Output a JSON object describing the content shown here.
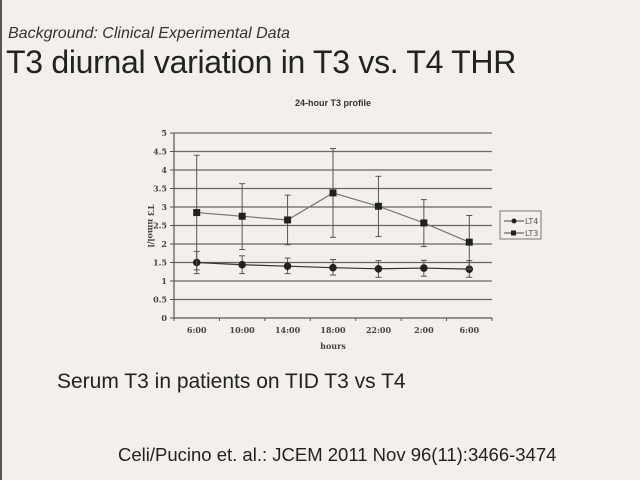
{
  "slide": {
    "subtitle": "Background: Clinical Experimental Data",
    "title": "T3 diurnal variation in T3 vs. T4 THR",
    "caption": "Serum T3 in patients on TID T3 vs T4",
    "citation": "Celi/Pucino et. al.: JCEM 2011 Nov 96(11):3466-3474"
  },
  "chart_data": {
    "type": "line",
    "title": "24-hour T3 profile",
    "xlabel": "hours",
    "ylabel": "T3 nmol/l",
    "ylim": [
      0,
      5
    ],
    "yticks": [
      "0",
      "0.5",
      "1",
      "1.5",
      "2",
      "2.5",
      "3",
      "3.5",
      "4",
      "4.5",
      "5"
    ],
    "categories": [
      "6:00",
      "10:00",
      "14:00",
      "18:00",
      "22:00",
      "2:00",
      "6:00"
    ],
    "grid": true,
    "legend_position": "right",
    "series": [
      {
        "name": "LT4",
        "marker": "diamond",
        "values": [
          1.5,
          1.44,
          1.4,
          1.36,
          1.33,
          1.35,
          1.32
        ],
        "err_high": [
          1.8,
          1.68,
          1.62,
          1.58,
          1.55,
          1.56,
          1.55
        ],
        "err_low": [
          1.2,
          1.2,
          1.2,
          1.16,
          1.1,
          1.13,
          1.1
        ]
      },
      {
        "name": "LT3",
        "marker": "square",
        "values": [
          2.85,
          2.75,
          2.65,
          3.38,
          3.02,
          2.57,
          2.05
        ],
        "err_high": [
          4.4,
          3.63,
          3.32,
          4.58,
          3.83,
          3.2,
          2.77
        ],
        "err_low": [
          1.3,
          1.85,
          1.98,
          2.18,
          2.2,
          1.93,
          1.32
        ]
      }
    ]
  }
}
